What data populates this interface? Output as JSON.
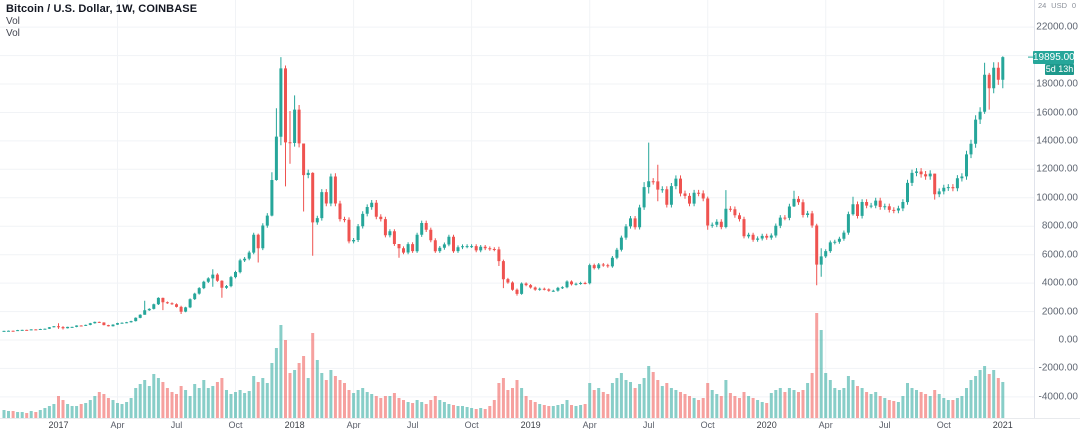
{
  "legend": {
    "title": "Bitcoin / U.S. Dollar, 1W, COINBASE",
    "indicators": [
      "Vol",
      "Vol"
    ]
  },
  "price_scale": {
    "axis_header": {
      "left": "24",
      "center": "USD",
      "right": "0"
    },
    "labels": [
      "22000.00",
      "18000.00",
      "16000.00",
      "14000.00",
      "12000.00",
      "10000.00",
      "8000.00",
      "6000.00",
      "4000.00",
      "2000.00",
      "0.00",
      "-2000.00",
      "-4000.00"
    ],
    "current_price": "19895.00",
    "countdown": "5d 13h"
  },
  "time_scale": {
    "ticks": [
      {
        "label": "2017",
        "week": 12
      },
      {
        "label": "Apr",
        "week": 25
      },
      {
        "label": "Jul",
        "week": 38
      },
      {
        "label": "Oct",
        "week": 51
      },
      {
        "label": "2018",
        "week": 64
      },
      {
        "label": "Apr",
        "week": 77
      },
      {
        "label": "Jul",
        "week": 90
      },
      {
        "label": "Oct",
        "week": 103
      },
      {
        "label": "2019",
        "week": 116
      },
      {
        "label": "Apr",
        "week": 129
      },
      {
        "label": "Jul",
        "week": 142
      },
      {
        "label": "Oct",
        "week": 155
      },
      {
        "label": "2020",
        "week": 168
      },
      {
        "label": "Apr",
        "week": 181
      },
      {
        "label": "Jul",
        "week": 194
      },
      {
        "label": "Oct",
        "week": 207
      },
      {
        "label": "2021",
        "week": 220
      }
    ]
  },
  "chart_data": {
    "type": "candlestick+volume",
    "title": "Bitcoin / U.S. Dollar, 1W, COINBASE",
    "symbol": "Bitcoin / U.S. Dollar",
    "interval": "1W",
    "exchange": "COINBASE",
    "ylim": [
      -5500,
      23900
    ],
    "grid": true,
    "current_price": 19895.0,
    "colors": {
      "up": "#26a69a",
      "down": "#ef5350",
      "volume_opacity": 0.55,
      "grid": "#f1f3f6",
      "tag": "#26a69a"
    },
    "first_open": 615,
    "closes": [
      640,
      652,
      650,
      698,
      710,
      705,
      745,
      742,
      770,
      792,
      898,
      963,
      905,
      825,
      920,
      920,
      1020,
      1005,
      1060,
      1180,
      1270,
      1230,
      1050,
      970,
      1080,
      1185,
      1210,
      1250,
      1330,
      1560,
      1775,
      2090,
      2190,
      2510,
      2960,
      2655,
      2590,
      2520,
      2330,
      1995,
      2290,
      2870,
      3260,
      3650,
      4090,
      4330,
      4600,
      4170,
      3670,
      3790,
      4420,
      4780,
      5600,
      5720,
      6150,
      7400,
      6450,
      8050,
      8750,
      11250,
      14300,
      19100,
      13900,
      13850,
      16200,
      13820,
      11600,
      11750,
      8270,
      8570,
      10400,
      9600,
      11500,
      9600,
      8500,
      8450,
      6930,
      7030,
      8000,
      8870,
      9350,
      9650,
      8670,
      8500,
      7360,
      7640,
      6750,
      6450,
      6150,
      6740,
      6250,
      7400,
      8230,
      7750,
      7020,
      6250,
      6480,
      6720,
      7260,
      6250,
      6520,
      6590,
      6600,
      6600,
      6300,
      6550,
      6450,
      6400,
      6370,
      5550,
      4280,
      4040,
      3530,
      3240,
      3970,
      3860,
      3690,
      3540,
      3610,
      3560,
      3460,
      3470,
      3660,
      3710,
      4110,
      3910,
      3960,
      4010,
      3990,
      5270,
      5060,
      5310,
      5250,
      5180,
      5790,
      6350,
      7200,
      7990,
      8550,
      7930,
      9320,
      10750,
      11160,
      11150,
      10570,
      10600,
      9510,
      10820,
      11350,
      10300,
      10130,
      9590,
      10350,
      10310,
      9950,
      8050,
      8100,
      8320,
      7940,
      9230,
      9200,
      8770,
      8500,
      7290,
      7400,
      7050,
      7140,
      7320,
      7200,
      7350,
      8030,
      8610,
      8590,
      9390,
      9920,
      9690,
      8790,
      8900,
      8050,
      5300,
      5880,
      6250,
      6860,
      6910,
      7120,
      7550,
      8850,
      9550,
      8720,
      9700,
      9450,
      9450,
      9800,
      9350,
      9400,
      9150,
      9100,
      9250,
      9700,
      11050,
      11750,
      11850,
      11650,
      11500,
      11700,
      10250,
      10450,
      10700,
      10750,
      10670,
      11370,
      11500,
      13050,
      13800,
      15500,
      16050,
      18650,
      17700,
      19150,
      18300,
      19895
    ],
    "volumes": [
      8,
      7,
      7,
      6,
      6,
      5,
      7,
      6,
      8,
      10,
      12,
      14,
      22,
      18,
      14,
      12,
      12,
      14,
      15,
      18,
      22,
      26,
      24,
      20,
      18,
      15,
      14,
      16,
      20,
      30,
      34,
      38,
      32,
      44,
      40,
      36,
      30,
      26,
      24,
      32,
      28,
      22,
      34,
      30,
      38,
      30,
      32,
      36,
      40,
      28,
      24,
      26,
      28,
      25,
      27,
      42,
      36,
      40,
      35,
      55,
      70,
      93,
      78,
      45,
      48,
      55,
      62,
      40,
      85,
      58,
      45,
      38,
      48,
      42,
      38,
      35,
      28,
      25,
      28,
      30,
      26,
      24,
      22,
      20,
      22,
      22,
      25,
      20,
      18,
      16,
      15,
      18,
      16,
      14,
      18,
      22,
      18,
      16,
      14,
      13,
      12,
      12,
      11,
      10,
      9,
      10,
      9,
      12,
      18,
      35,
      40,
      28,
      30,
      38,
      30,
      22,
      18,
      16,
      14,
      13,
      12,
      12,
      13,
      14,
      18,
      13,
      12,
      13,
      14,
      35,
      28,
      30,
      26,
      24,
      35,
      40,
      45,
      38,
      36,
      30,
      34,
      40,
      52,
      46,
      38,
      32,
      35,
      30,
      28,
      26,
      24,
      22,
      20,
      18,
      20,
      35,
      28,
      24,
      22,
      38,
      25,
      22,
      20,
      26,
      22,
      20,
      18,
      16,
      15,
      25,
      28,
      30,
      26,
      30,
      28,
      26,
      28,
      35,
      45,
      105,
      88,
      45,
      38,
      30,
      28,
      30,
      42,
      38,
      32,
      30,
      26,
      24,
      26,
      22,
      20,
      18,
      17,
      16,
      22,
      35,
      30,
      28,
      26,
      24,
      22,
      28,
      24,
      20,
      18,
      18,
      20,
      22,
      30,
      38,
      42,
      48,
      52,
      44,
      48,
      40,
      36
    ],
    "default_wick_pct": 0.02,
    "wick_overrides": {
      "12": [
        1180,
        780
      ],
      "13": [
        980,
        740
      ],
      "31": [
        2760,
        1850
      ],
      "34": [
        3000,
        2460
      ],
      "35": [
        2980,
        2100
      ],
      "39": [
        2410,
        1830
      ],
      "46": [
        4980,
        3740
      ],
      "48": [
        4200,
        2970
      ],
      "56": [
        7480,
        5450
      ],
      "59": [
        11800,
        8690
      ],
      "60": [
        16300,
        11200
      ],
      "61": [
        19891,
        13700
      ],
      "62": [
        19300,
        10800
      ],
      "63": [
        16100,
        12400
      ],
      "64": [
        17200,
        13600
      ],
      "66": [
        13100,
        9035
      ],
      "68": [
        11800,
        5920
      ],
      "72": [
        11700,
        9400
      ],
      "87": [
        6600,
        5780
      ],
      "109": [
        6560,
        5200
      ],
      "110": [
        5650,
        3650
      ],
      "113": [
        3620,
        3120
      ],
      "141": [
        11100,
        9150
      ],
      "142": [
        13880,
        10300
      ],
      "144": [
        12320,
        9760
      ],
      "155": [
        10080,
        7750
      ],
      "159": [
        10540,
        7850
      ],
      "174": [
        10500,
        9350
      ],
      "179": [
        8180,
        3850
      ],
      "180": [
        6450,
        4450
      ],
      "187": [
        10070,
        8750
      ],
      "205": [
        11150,
        9870
      ],
      "216": [
        19500,
        15900
      ],
      "217": [
        18780,
        16200
      ],
      "220": [
        19950,
        17700
      ]
    }
  }
}
